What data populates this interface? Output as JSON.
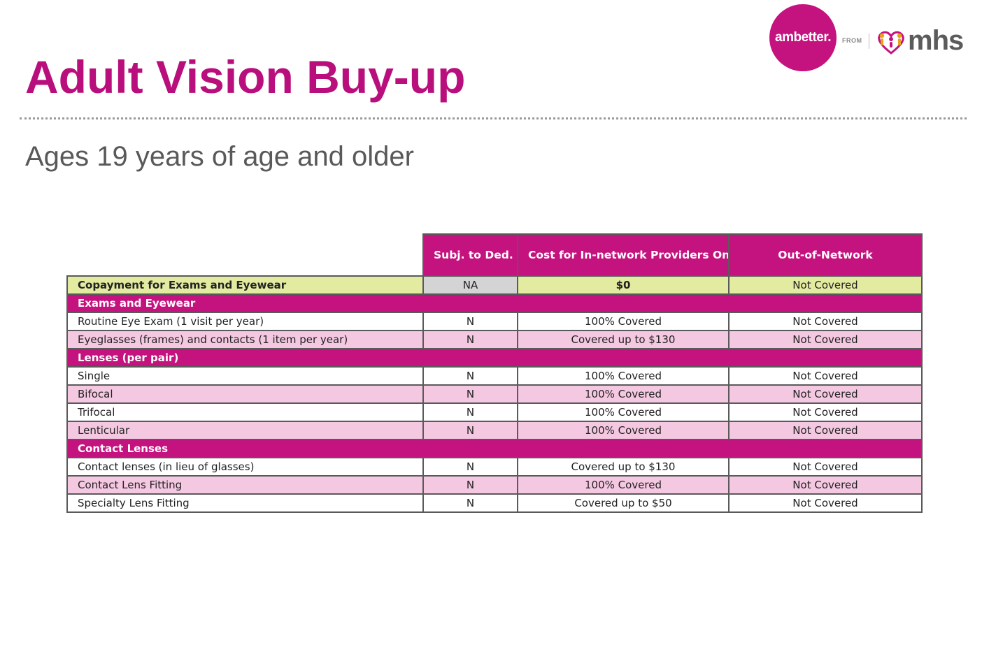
{
  "slide": {
    "title": "Adult Vision Buy-up",
    "subtitle": "Ages 19 years of age and older"
  },
  "logo": {
    "brand": "ambetter.",
    "from": "FROM",
    "partner": "mhs",
    "brand_color": "#c4127f"
  },
  "table": {
    "headers": [
      "",
      "Subj. to Ded.",
      "Cost for In-network Providers Only",
      "Out-of-Network"
    ],
    "copay": {
      "label": "Copayment for Exams and Eyewear",
      "ded": "NA",
      "in_network": "$0",
      "out_network": "Not Covered"
    },
    "sections": [
      {
        "title": "Exams and Eyewear",
        "rows": [
          {
            "label": "Routine Eye Exam (1 visit per year)",
            "ded": "N",
            "in_network": "100% Covered",
            "out_network": "Not Covered"
          },
          {
            "label": "Eyeglasses (frames) and contacts (1 item per year)",
            "ded": "N",
            "in_network": "Covered up to $130",
            "out_network": "Not Covered"
          }
        ]
      },
      {
        "title": "Lenses (per pair)",
        "rows": [
          {
            "label": "Single",
            "ded": "N",
            "in_network": "100% Covered",
            "out_network": "Not Covered"
          },
          {
            "label": "Bifocal",
            "ded": "N",
            "in_network": "100% Covered",
            "out_network": "Not Covered"
          },
          {
            "label": "Trifocal",
            "ded": "N",
            "in_network": "100% Covered",
            "out_network": "Not Covered"
          },
          {
            "label": "Lenticular",
            "ded": "N",
            "in_network": "100% Covered",
            "out_network": "Not Covered"
          }
        ]
      },
      {
        "title": "Contact Lenses",
        "rows": [
          {
            "label": "Contact lenses (in lieu of glasses)",
            "ded": "N",
            "in_network": "Covered up to $130",
            "out_network": "Not Covered"
          },
          {
            "label": "Contact Lens Fitting",
            "ded": "N",
            "in_network": "100% Covered",
            "out_network": "Not Covered"
          },
          {
            "label": "Specialty Lens Fitting",
            "ded": "N",
            "in_network": "Covered up to $50",
            "out_network": "Not Covered"
          }
        ]
      }
    ]
  }
}
